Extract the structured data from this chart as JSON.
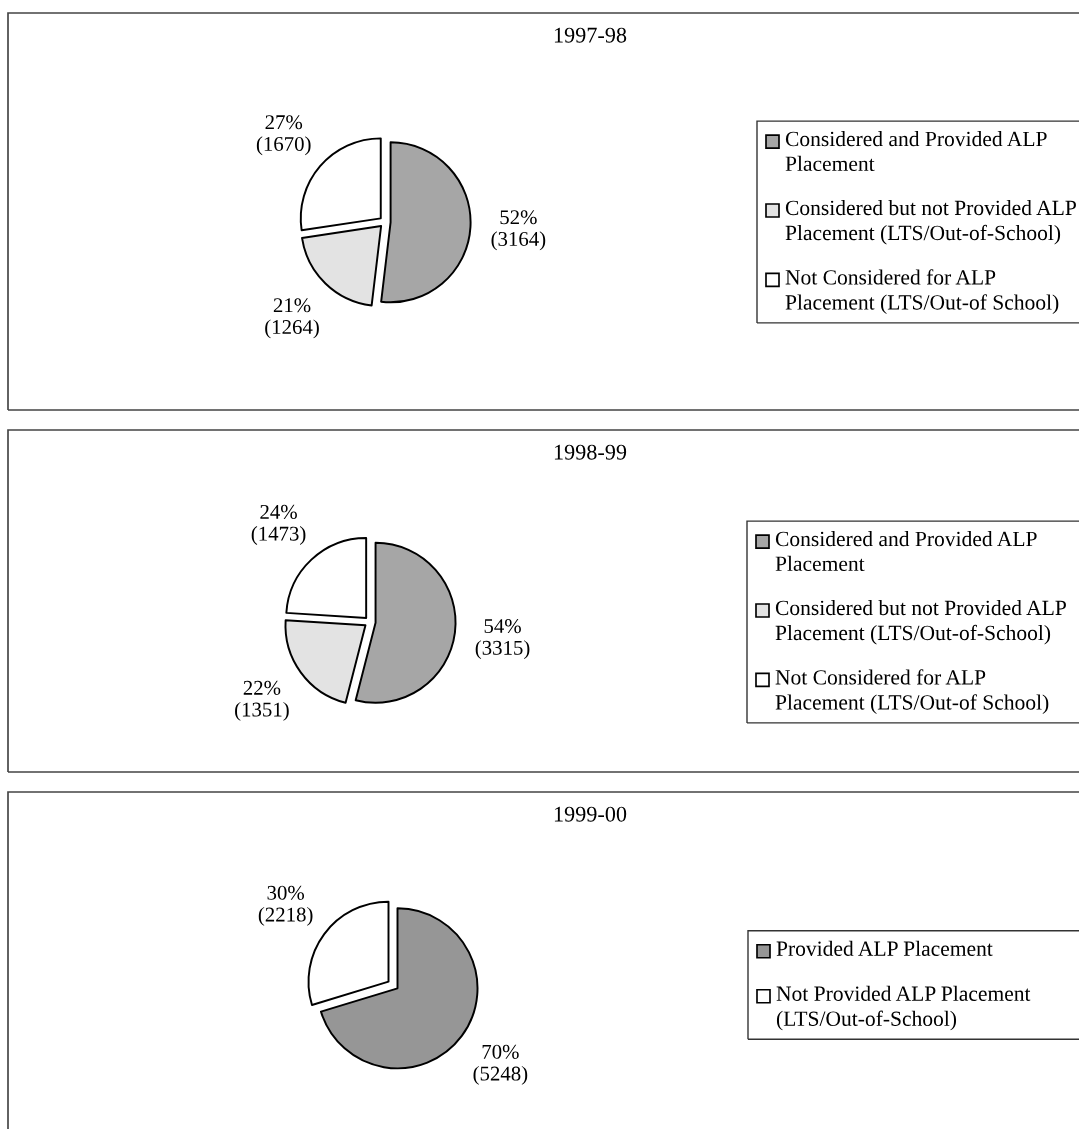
{
  "chart_data": [
    {
      "type": "pie",
      "title": "1997-98",
      "categories": [
        "Considered and Provided ALP Placement",
        "Considered but not Provided ALP Placement (LTS/Out-of-School)",
        "Not Considered for ALP Placement (LTS/Out-of School)"
      ],
      "values": [
        3164,
        1264,
        1670
      ],
      "value_labels": [
        "52%\n(3164)",
        "21%\n(1264)",
        "27%\n(1670)"
      ],
      "colors": [
        "#a6a6a6",
        "#e3e3e3",
        "#ffffff"
      ],
      "legend": "right"
    },
    {
      "type": "pie",
      "title": "1998-99",
      "categories": [
        "Considered and Provided ALP Placement",
        "Considered but not Provided ALP Placement (LTS/Out-of-School)",
        "Not Considered for ALP Placement (LTS/Out-of School)"
      ],
      "values": [
        3315,
        1351,
        1473
      ],
      "value_labels": [
        "54%\n(3315)",
        "22%\n(1351)",
        "24%\n(1473)"
      ],
      "colors": [
        "#a6a6a6",
        "#e3e3e3",
        "#ffffff"
      ],
      "legend": "right"
    },
    {
      "type": "pie",
      "title": "1999-00",
      "categories": [
        "Provided ALP Placement",
        "Not Provided ALP Placement (LTS/Out-of-School)"
      ],
      "values": [
        5248,
        2218
      ],
      "value_labels": [
        "70%\n(5248)",
        "30%\n(2218)"
      ],
      "colors": [
        "#969696",
        "#ffffff"
      ],
      "legend": "right"
    }
  ]
}
